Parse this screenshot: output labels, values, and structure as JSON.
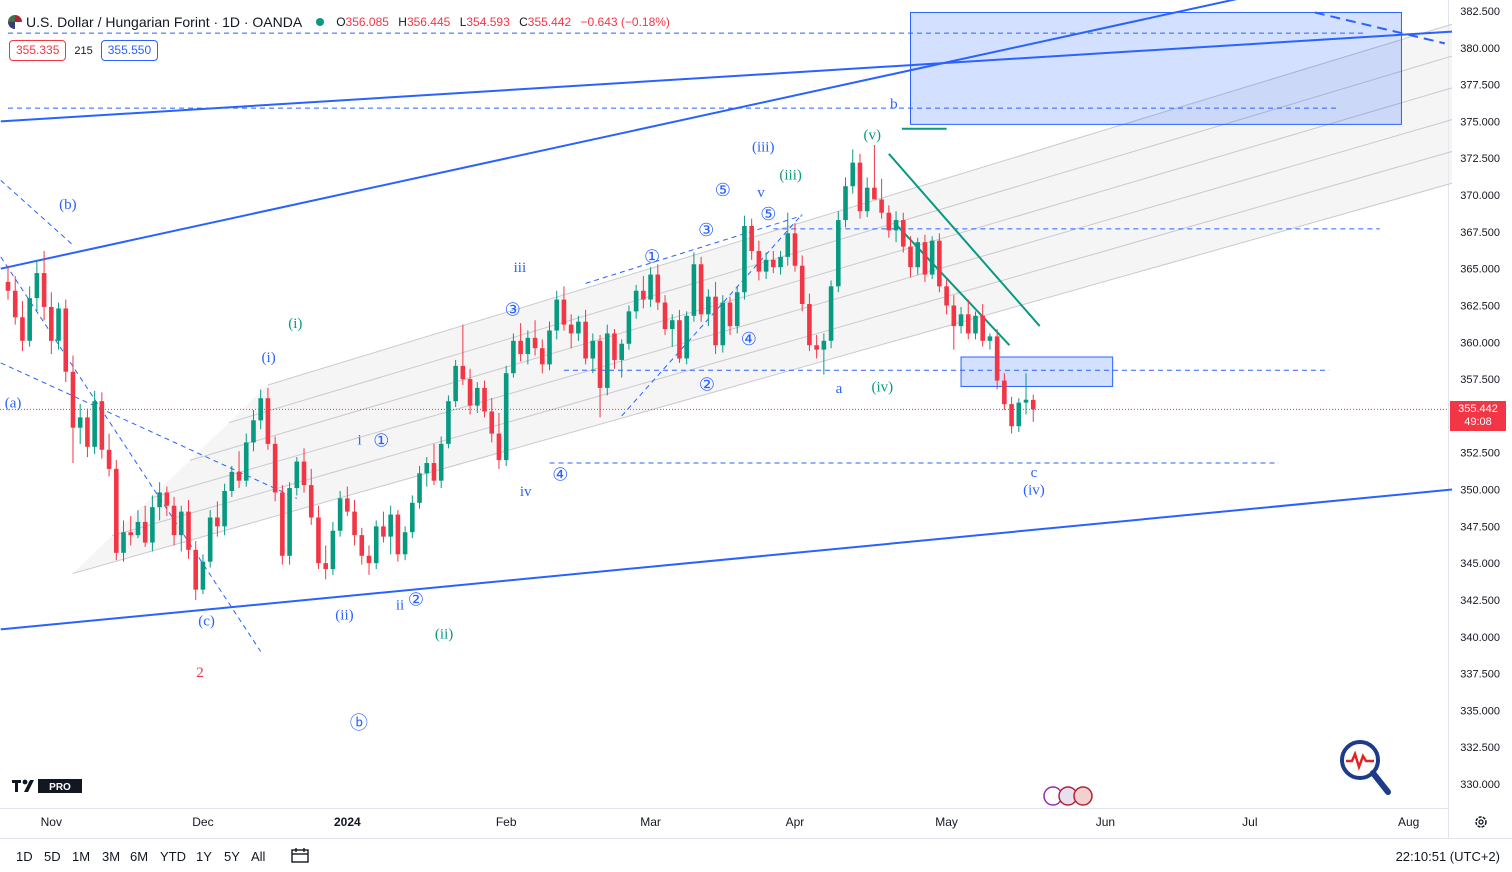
{
  "header": {
    "title": "U.S. Dollar / Hungarian Forint · 1D · OANDA",
    "open_label": "O",
    "open": "356.085",
    "high_label": "H",
    "high": "356.445",
    "low_label": "L",
    "low": "354.593",
    "close_label": "C",
    "close": "355.442",
    "change": "−0.643 (−0.18%)"
  },
  "quote": {
    "bid": "355.335",
    "spread": "215",
    "ask": "355.550"
  },
  "last_price": {
    "price": "355.442",
    "countdown": "49:08"
  },
  "colors": {
    "up": "#089981",
    "down": "#f23645",
    "trendline": "#2962ff",
    "wave_blue": "#2962ff",
    "wave_green": "#089981",
    "wave_red": "#f23645",
    "channel_fill": "#ececef"
  },
  "range_buttons": [
    "1D",
    "5D",
    "1M",
    "3M",
    "6M",
    "YTD",
    "1Y",
    "5Y",
    "All"
  ],
  "clock": "22:10:51 (UTC+2)",
  "logo_text": "PRO",
  "icons": [
    "calendar-range-icon",
    "settings-gear-icon",
    "heartbeat-search-icon",
    "flag-icons"
  ],
  "chart_data": {
    "type": "candlestick",
    "symbol": "USDHUF",
    "timeframe": "1D",
    "ylim": [
      328.8,
      382.6
    ],
    "yticks": [
      "382.500",
      "380.000",
      "377.500",
      "375.000",
      "372.500",
      "370.000",
      "367.500",
      "365.000",
      "362.500",
      "360.000",
      "357.500",
      "355.000",
      "352.500",
      "350.000",
      "347.500",
      "345.000",
      "342.500",
      "340.000",
      "337.500",
      "335.000",
      "332.500",
      "330.000"
    ],
    "xticks": [
      {
        "label": "Nov",
        "index": 6
      },
      {
        "label": "Dec",
        "index": 27
      },
      {
        "label": "2024",
        "index": 47
      },
      {
        "label": "Feb",
        "index": 69
      },
      {
        "label": "Mar",
        "index": 89
      },
      {
        "label": "Apr",
        "index": 109
      },
      {
        "label": "May",
        "index": 130
      },
      {
        "label": "Jun",
        "index": 152
      },
      {
        "label": "Jul",
        "index": 172
      },
      {
        "label": "Aug",
        "index": 194
      }
    ],
    "candles": [
      [
        364.1,
        365.2,
        362.9,
        363.5
      ],
      [
        363.5,
        364.5,
        361.2,
        361.7
      ],
      [
        361.7,
        362.8,
        359.4,
        360.1
      ],
      [
        360.1,
        363.8,
        359.7,
        363.0
      ],
      [
        363.0,
        365.6,
        362.1,
        364.7
      ],
      [
        364.7,
        366.2,
        361.5,
        362.4
      ],
      [
        362.4,
        363.4,
        359.2,
        360.1
      ],
      [
        360.1,
        362.7,
        359.5,
        362.3
      ],
      [
        362.3,
        362.9,
        357.3,
        358.0
      ],
      [
        358.0,
        359.1,
        351.8,
        354.2
      ],
      [
        354.2,
        355.8,
        353.1,
        354.9
      ],
      [
        354.9,
        355.5,
        352.2,
        352.9
      ],
      [
        352.9,
        356.7,
        352.4,
        356.0
      ],
      [
        356.0,
        356.6,
        352.1,
        352.7
      ],
      [
        352.7,
        353.8,
        350.9,
        351.4
      ],
      [
        351.4,
        352.0,
        345.2,
        345.7
      ],
      [
        345.7,
        347.9,
        345.1,
        347.1
      ],
      [
        347.1,
        348.2,
        346.2,
        346.9
      ],
      [
        346.9,
        348.6,
        346.7,
        347.8
      ],
      [
        347.8,
        348.9,
        346.1,
        346.4
      ],
      [
        346.4,
        349.6,
        345.8,
        348.8
      ],
      [
        348.8,
        350.5,
        347.9,
        349.8
      ],
      [
        349.8,
        350.2,
        348.2,
        348.9
      ],
      [
        348.9,
        349.5,
        346.2,
        346.9
      ],
      [
        346.9,
        348.9,
        345.8,
        348.5
      ],
      [
        348.5,
        349.3,
        345.3,
        345.9
      ],
      [
        345.9,
        346.5,
        342.5,
        343.2
      ],
      [
        343.2,
        345.6,
        342.9,
        345.1
      ],
      [
        345.1,
        348.6,
        344.7,
        348.1
      ],
      [
        348.1,
        349.2,
        346.8,
        347.5
      ],
      [
        347.5,
        350.4,
        346.9,
        349.9
      ],
      [
        349.9,
        351.6,
        349.5,
        351.2
      ],
      [
        351.2,
        352.6,
        350.1,
        350.6
      ],
      [
        350.6,
        353.8,
        350.2,
        353.2
      ],
      [
        353.2,
        355.4,
        352.6,
        354.7
      ],
      [
        354.7,
        356.8,
        354.1,
        356.2
      ],
      [
        356.2,
        356.9,
        352.7,
        353.1
      ],
      [
        353.1,
        353.6,
        349.2,
        349.8
      ],
      [
        349.8,
        350.3,
        344.9,
        345.5
      ],
      [
        345.5,
        350.5,
        344.9,
        350.1
      ],
      [
        350.1,
        352.2,
        349.6,
        351.9
      ],
      [
        351.9,
        352.8,
        349.8,
        350.3
      ],
      [
        350.3,
        351.4,
        347.6,
        348.1
      ],
      [
        348.1,
        348.9,
        344.6,
        345.0
      ],
      [
        345.0,
        346.2,
        343.9,
        344.6
      ],
      [
        344.6,
        347.8,
        344.2,
        347.2
      ],
      [
        347.2,
        349.9,
        346.8,
        349.4
      ],
      [
        349.4,
        350.2,
        348.2,
        348.5
      ],
      [
        348.5,
        349.3,
        346.2,
        346.9
      ],
      [
        346.9,
        347.4,
        344.9,
        345.5
      ],
      [
        345.5,
        346.2,
        344.2,
        345.0
      ],
      [
        345.0,
        347.9,
        344.6,
        347.5
      ],
      [
        347.5,
        348.5,
        346.4,
        346.8
      ],
      [
        346.8,
        348.9,
        345.6,
        348.3
      ],
      [
        348.3,
        348.6,
        345.1,
        345.6
      ],
      [
        345.6,
        347.5,
        345.2,
        347.1
      ],
      [
        347.1,
        349.6,
        346.7,
        349.1
      ],
      [
        349.1,
        351.6,
        348.7,
        351.1
      ],
      [
        351.1,
        352.2,
        350.2,
        351.8
      ],
      [
        351.8,
        353.1,
        350.3,
        350.6
      ],
      [
        350.6,
        353.6,
        350.1,
        353.1
      ],
      [
        353.1,
        356.4,
        352.8,
        356.0
      ],
      [
        356.0,
        358.8,
        355.6,
        358.4
      ],
      [
        358.4,
        361.2,
        357.1,
        357.5
      ],
      [
        357.5,
        358.2,
        355.1,
        355.7
      ],
      [
        355.7,
        357.3,
        355.2,
        356.9
      ],
      [
        356.9,
        357.4,
        354.9,
        355.3
      ],
      [
        355.3,
        356.2,
        353.2,
        353.8
      ],
      [
        353.8,
        355.2,
        351.4,
        352.0
      ],
      [
        352.0,
        358.4,
        351.6,
        357.9
      ],
      [
        357.9,
        360.6,
        357.6,
        360.1
      ],
      [
        360.1,
        361.3,
        358.7,
        359.2
      ],
      [
        359.2,
        360.8,
        358.5,
        360.3
      ],
      [
        360.3,
        361.5,
        359.1,
        359.6
      ],
      [
        359.6,
        360.2,
        357.9,
        358.5
      ],
      [
        358.5,
        361.4,
        358.1,
        360.8
      ],
      [
        360.8,
        363.5,
        360.2,
        362.9
      ],
      [
        362.9,
        363.8,
        360.8,
        361.2
      ],
      [
        361.2,
        361.9,
        359.6,
        360.6
      ],
      [
        360.6,
        361.8,
        360.1,
        361.4
      ],
      [
        361.4,
        362.2,
        358.5,
        358.9
      ],
      [
        358.9,
        360.6,
        357.9,
        360.1
      ],
      [
        360.1,
        360.5,
        354.9,
        356.9
      ],
      [
        356.9,
        361.2,
        356.4,
        360.6
      ],
      [
        360.6,
        360.9,
        358.2,
        358.8
      ],
      [
        358.8,
        360.2,
        357.6,
        359.9
      ],
      [
        359.9,
        362.5,
        359.5,
        362.1
      ],
      [
        362.1,
        363.9,
        361.6,
        363.5
      ],
      [
        363.5,
        364.5,
        362.3,
        362.9
      ],
      [
        362.9,
        365.1,
        362.4,
        364.6
      ],
      [
        364.6,
        365.3,
        362.2,
        362.7
      ],
      [
        362.7,
        363.2,
        360.5,
        360.9
      ],
      [
        360.9,
        361.9,
        359.7,
        361.5
      ],
      [
        361.5,
        362.2,
        358.6,
        358.9
      ],
      [
        358.9,
        362.1,
        358.5,
        361.8
      ],
      [
        361.8,
        366.1,
        361.4,
        365.3
      ],
      [
        365.3,
        365.8,
        361.4,
        361.9
      ],
      [
        361.9,
        363.6,
        361.1,
        363.1
      ],
      [
        363.1,
        364.1,
        359.2,
        359.8
      ],
      [
        359.8,
        363.2,
        359.3,
        362.7
      ],
      [
        362.7,
        363.1,
        360.5,
        361.1
      ],
      [
        361.1,
        363.8,
        360.6,
        363.4
      ],
      [
        363.4,
        368.6,
        362.9,
        367.9
      ],
      [
        367.9,
        368.4,
        365.6,
        366.2
      ],
      [
        366.2,
        366.9,
        364.2,
        364.8
      ],
      [
        364.8,
        366.1,
        364.3,
        365.6
      ],
      [
        365.6,
        366.2,
        364.7,
        365.1
      ],
      [
        365.1,
        366.2,
        364.6,
        365.8
      ],
      [
        365.8,
        368.8,
        365.2,
        367.4
      ],
      [
        367.4,
        368.1,
        364.8,
        365.2
      ],
      [
        365.2,
        365.9,
        362.1,
        362.6
      ],
      [
        362.6,
        363.3,
        359.4,
        359.8
      ],
      [
        359.8,
        360.5,
        358.9,
        359.5
      ],
      [
        359.5,
        360.6,
        357.8,
        360.1
      ],
      [
        360.1,
        364.2,
        359.6,
        363.8
      ],
      [
        363.8,
        368.9,
        363.4,
        368.3
      ],
      [
        368.3,
        371.2,
        367.8,
        370.6
      ],
      [
        370.6,
        373.1,
        370.1,
        372.2
      ],
      [
        372.2,
        372.8,
        368.4,
        368.9
      ],
      [
        368.9,
        371.2,
        368.5,
        370.5
      ],
      [
        370.5,
        373.4,
        369.9,
        369.7
      ],
      [
        369.7,
        371.1,
        368.4,
        368.8
      ],
      [
        368.8,
        369.3,
        367.1,
        367.6
      ],
      [
        367.6,
        368.9,
        366.8,
        368.3
      ],
      [
        368.3,
        368.8,
        366.1,
        366.5
      ],
      [
        366.5,
        367.2,
        364.4,
        365.1
      ],
      [
        365.1,
        367.1,
        364.6,
        366.8
      ],
      [
        366.8,
        367.3,
        364.1,
        364.6
      ],
      [
        364.6,
        367.2,
        364.3,
        366.9
      ],
      [
        366.9,
        367.4,
        363.4,
        363.8
      ],
      [
        363.8,
        364.3,
        361.9,
        362.5
      ],
      [
        362.5,
        363.2,
        359.5,
        361.1
      ],
      [
        361.1,
        362.4,
        360.6,
        361.9
      ],
      [
        361.9,
        362.9,
        360.2,
        360.6
      ],
      [
        360.6,
        362.1,
        360.2,
        361.8
      ],
      [
        361.8,
        362.6,
        359.7,
        360.1
      ],
      [
        360.1,
        360.6,
        359.5,
        360.4
      ],
      [
        360.4,
        360.9,
        356.8,
        357.4
      ],
      [
        357.4,
        357.9,
        355.4,
        355.8
      ],
      [
        355.8,
        356.3,
        353.8,
        354.3
      ],
      [
        354.3,
        356.2,
        353.9,
        355.9
      ],
      [
        355.9,
        357.9,
        355.1,
        356.1
      ],
      [
        356.085,
        356.445,
        354.593,
        355.442
      ]
    ],
    "candle_start_x": 8,
    "candle_spacing": 7.22,
    "levels_dashed": [
      {
        "price": 375.9,
        "x0_idx": 0,
        "x1_idx": 184
      },
      {
        "price": 367.7,
        "x0_idx": 106,
        "x1_idx": 190
      },
      {
        "price": 358.1,
        "x0_idx": 77,
        "x1_idx": 183
      },
      {
        "price": 351.8,
        "x0_idx": 75,
        "x1_idx": 176
      },
      {
        "price": 381.0,
        "x0_idx": 0,
        "x1_idx": 188
      }
    ],
    "trendlines": [
      {
        "from": [
          -1,
          365.0
        ],
        "to": [
          200,
          386.5
        ]
      },
      {
        "from": [
          -1,
          375.0
        ],
        "to": [
          200,
          381.1
        ]
      },
      {
        "from": [
          -1,
          340.5
        ],
        "to": [
          200,
          350.0
        ]
      }
    ],
    "channel": {
      "lower_from": [
        9,
        344.3
      ],
      "lower_to": [
        200,
        370.8
      ],
      "upper_from": [
        36,
        357.1
      ],
      "upper_to": [
        200,
        381.6
      ],
      "inner_lines": 4
    },
    "zones": [
      {
        "from_idx": 125,
        "to_idx": 193,
        "top": 382.4,
        "bottom": 374.8
      },
      {
        "from_idx": 132,
        "to_idx": 153,
        "top": 359.0,
        "bottom": 357.0
      }
    ],
    "wave_labels": [
      {
        "text": "(b)",
        "idx": 8.3,
        "price": 369.3,
        "color": "blue"
      },
      {
        "text": "(a)",
        "idx": 0.7,
        "price": 355.8,
        "color": "blue"
      },
      {
        "text": "(c)",
        "idx": 27.5,
        "price": 341.0,
        "color": "blue"
      },
      {
        "text": "2",
        "idx": 26.6,
        "price": 337.5,
        "color": "red"
      },
      {
        "text": "(i)",
        "idx": 36.1,
        "price": 358.9,
        "color": "blue"
      },
      {
        "text": "(i)",
        "idx": 39.8,
        "price": 361.2,
        "color": "green"
      },
      {
        "text": "(ii)",
        "idx": 46.6,
        "price": 341.4,
        "color": "blue"
      },
      {
        "text": "(ii)",
        "idx": 60.4,
        "price": 340.1,
        "color": "green"
      },
      {
        "text": "ii",
        "idx": 54.3,
        "price": 342.1,
        "color": "blue"
      },
      {
        "text": "②",
        "idx": 56.5,
        "price": 342.4,
        "color": "blue"
      },
      {
        "text": "i",
        "idx": 48.7,
        "price": 353.3,
        "color": "blue"
      },
      {
        "text": "①",
        "idx": 51.7,
        "price": 353.2,
        "color": "blue"
      },
      {
        "text": "iii",
        "idx": 70.9,
        "price": 365.0,
        "color": "blue"
      },
      {
        "text": "iv",
        "idx": 71.7,
        "price": 349.8,
        "color": "blue"
      },
      {
        "text": "④",
        "idx": 76.5,
        "price": 350.9,
        "color": "blue"
      },
      {
        "text": "③",
        "idx": 69.9,
        "price": 362.1,
        "color": "blue"
      },
      {
        "text": "①",
        "idx": 89.2,
        "price": 365.7,
        "color": "blue"
      },
      {
        "text": "②",
        "idx": 96.8,
        "price": 357.0,
        "color": "blue"
      },
      {
        "text": "③",
        "idx": 96.7,
        "price": 367.5,
        "color": "blue"
      },
      {
        "text": "④",
        "idx": 102.6,
        "price": 360.1,
        "color": "blue"
      },
      {
        "text": "⑤",
        "idx": 99.0,
        "price": 370.2,
        "color": "blue"
      },
      {
        "text": "⑤",
        "idx": 105.3,
        "price": 368.6,
        "color": "blue"
      },
      {
        "text": "v",
        "idx": 104.3,
        "price": 370.1,
        "color": "blue"
      },
      {
        "text": "(iii)",
        "idx": 104.6,
        "price": 373.2,
        "color": "blue"
      },
      {
        "text": "(iii)",
        "idx": 108.4,
        "price": 371.3,
        "color": "green"
      },
      {
        "text": "a",
        "idx": 115.1,
        "price": 356.8,
        "color": "blue"
      },
      {
        "text": "(iv)",
        "idx": 121.1,
        "price": 356.9,
        "color": "green"
      },
      {
        "text": "(v)",
        "idx": 119.7,
        "price": 374.0,
        "color": "green"
      },
      {
        "text": "b",
        "idx": 122.7,
        "price": 376.1,
        "color": "blue"
      },
      {
        "text": "c",
        "idx": 142.1,
        "price": 351.1,
        "color": "blue"
      },
      {
        "text": "(iv)",
        "idx": 142.1,
        "price": 349.9,
        "color": "blue"
      },
      {
        "text": "ⓑ",
        "idx": 48.6,
        "price": 334.0,
        "color": "blue"
      }
    ]
  }
}
